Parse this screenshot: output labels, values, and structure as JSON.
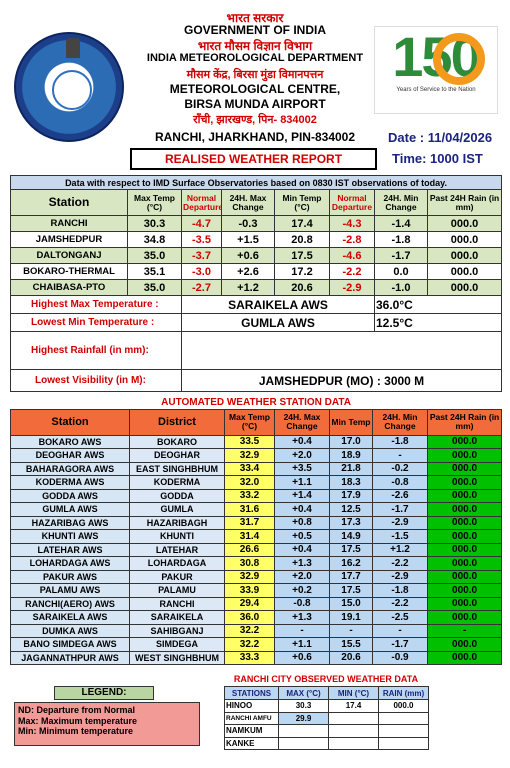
{
  "header": {
    "hi_gov": "भारत सरकार",
    "gov": "GOVERNMENT OF INDIA",
    "hi_imd": "भारत मौसम विज्ञान विभाग",
    "imd": "INDIA METEOROLOGICAL DEPARTMENT",
    "hi_centre": "मौसम केंद्र, बिरसा मुंडा विमानपत्तन",
    "centre1": "METEOROLOGICAL CENTRE,",
    "centre2": "BIRSA MUNDA AIRPORT",
    "hi_pin": "रॉंची, झारखण्ड, पिन- 834002",
    "addr": "RANCHI, JHARKHAND, PIN-834002",
    "logo_number": "150",
    "logo_caption": "Years of Service to the Nation",
    "date": "Date : 11/04/2026",
    "time": "Time: 1000 IST",
    "report_title": "REALISED WEATHER REPORT",
    "colors": {
      "accent": "#d00000",
      "navy": "#1a237e",
      "green": "#d8e7c2",
      "aws_header": "#f26b3a"
    }
  },
  "obs": {
    "note": "Data with respect to IMD Surface Observatories based on 0830 IST observations of today.",
    "headers": [
      "Station",
      "Max Temp (°C)",
      "Normal Departure",
      "24H. Max Change",
      "Min Temp (°C)",
      "Normal Departure",
      "24H. Min Change",
      "Past 24H Rain (in mm)"
    ],
    "rows": [
      [
        "RANCHI",
        "30.3",
        "-4.7",
        "-0.3",
        "17.4",
        "-4.3",
        "-1.4",
        "000.0"
      ],
      [
        "JAMSHEDPUR",
        "34.8",
        "-3.5",
        "+1.5",
        "20.8",
        "-2.8",
        "-1.8",
        "000.0"
      ],
      [
        "DALTONGANJ",
        "35.0",
        "-3.7",
        "+0.6",
        "17.5",
        "-4.6",
        "-1.7",
        "000.0"
      ],
      [
        "BOKARO-THERMAL",
        "35.1",
        "-3.0",
        "+2.6",
        "17.2",
        "-2.2",
        "0.0",
        "000.0"
      ],
      [
        "CHAIBASA-PTO",
        "35.0",
        "-2.7",
        "+1.2",
        "20.6",
        "-2.9",
        "-1.0",
        "000.0"
      ]
    ]
  },
  "summary": {
    "max_label": "Highest Max Temperature :",
    "max_station": "SARAIKELA AWS",
    "max_value": "36.0°C",
    "min_label": "Lowest Min Temperature :",
    "min_station": "GUMLA AWS",
    "min_value": "12.5°C",
    "rain_label": "Highest Rainfall (in mm):",
    "vis_label": "Lowest Visibility (in M):",
    "vis_value": "JAMSHEDPUR (MO) : 3000 M"
  },
  "aws": {
    "title": "AUTOMATED WEATHER STATION DATA",
    "headers": [
      "Station",
      "District",
      "Max Temp (°C)",
      "24H. Max Change",
      "Min Temp",
      "24H. Min Change",
      "Past 24H Rain (in mm)"
    ],
    "rows": [
      [
        "BOKARO AWS",
        "BOKARO",
        "33.5",
        "+0.4",
        "17.0",
        "-1.8",
        "000.0"
      ],
      [
        "DEOGHAR AWS",
        "DEOGHAR",
        "32.9",
        "+2.0",
        "18.9",
        "-",
        "000.0"
      ],
      [
        "BAHARAGORA AWS",
        "EAST SINGHBHUM",
        "33.4",
        "+3.5",
        "21.8",
        "-0.2",
        "000.0"
      ],
      [
        "KODERMA AWS",
        "KODERMA",
        "32.0",
        "+1.1",
        "18.3",
        "-0.8",
        "000.0"
      ],
      [
        "GODDA AWS",
        "GODDA",
        "33.2",
        "+1.4",
        "17.9",
        "-2.6",
        "000.0"
      ],
      [
        "GUMLA AWS",
        "GUMLA",
        "31.6",
        "+0.4",
        "12.5",
        "-1.7",
        "000.0"
      ],
      [
        "HAZARIBAG AWS",
        "HAZARIBAGH",
        "31.7",
        "+0.8",
        "17.3",
        "-2.9",
        "000.0"
      ],
      [
        "KHUNTI AWS",
        "KHUNTI",
        "31.4",
        "+0.5",
        "14.9",
        "-1.5",
        "000.0"
      ],
      [
        "LATEHAR AWS",
        "LATEHAR",
        "26.6",
        "+0.4",
        "17.5",
        "+1.2",
        "000.0"
      ],
      [
        "LOHARDAGA AWS",
        "LOHARDAGA",
        "30.8",
        "+1.3",
        "16.2",
        "-2.2",
        "000.0"
      ],
      [
        "PAKUR AWS",
        "PAKUR",
        "32.9",
        "+2.0",
        "17.7",
        "-2.9",
        "000.0"
      ],
      [
        "PALAMU AWS",
        "PALAMU",
        "33.9",
        "+0.2",
        "17.5",
        "-1.8",
        "000.0"
      ],
      [
        "RANCHI(AERO) AWS",
        "RANCHI",
        "29.4",
        "-0.8",
        "15.0",
        "-2.2",
        "000.0"
      ],
      [
        "SARAIKELA AWS",
        "SARAIKELA",
        "36.0",
        "+1.3",
        "19.1",
        "-2.5",
        "000.0"
      ],
      [
        "DUMKA AWS",
        "SAHIBGANJ",
        "32.2",
        "-",
        "-",
        "-",
        "-"
      ],
      [
        "BANO SIMDEGA AWS",
        "SIMDEGA",
        "32.2",
        "+1.1",
        "15.5",
        "-1.7",
        "000.0"
      ],
      [
        "JAGANNATHPUR AWS",
        "WEST SINGHBHUM",
        "33.3",
        "+0.6",
        "20.6",
        "-0.9",
        "000.0"
      ]
    ]
  },
  "legend": {
    "title": "LEGEND:",
    "l1": "ND: Departure from Normal",
    "l2": "Max: Maximum temperature",
    "l3": "Min: Minimum temperature"
  },
  "city": {
    "title": "RANCHI CITY OBSERVED WEATHER DATA",
    "headers": [
      "STATIONS",
      "MAX (°C)",
      "MIN (°C)",
      "RAIN (mm)"
    ],
    "rows": [
      [
        "HINOO",
        "30.3",
        "17.4",
        "000.0"
      ],
      [
        "RANCHI AMFU",
        "29.9",
        "",
        ""
      ],
      [
        "NAMKUM",
        "",
        "",
        ""
      ],
      [
        "KANKE",
        "",
        "",
        ""
      ]
    ]
  }
}
